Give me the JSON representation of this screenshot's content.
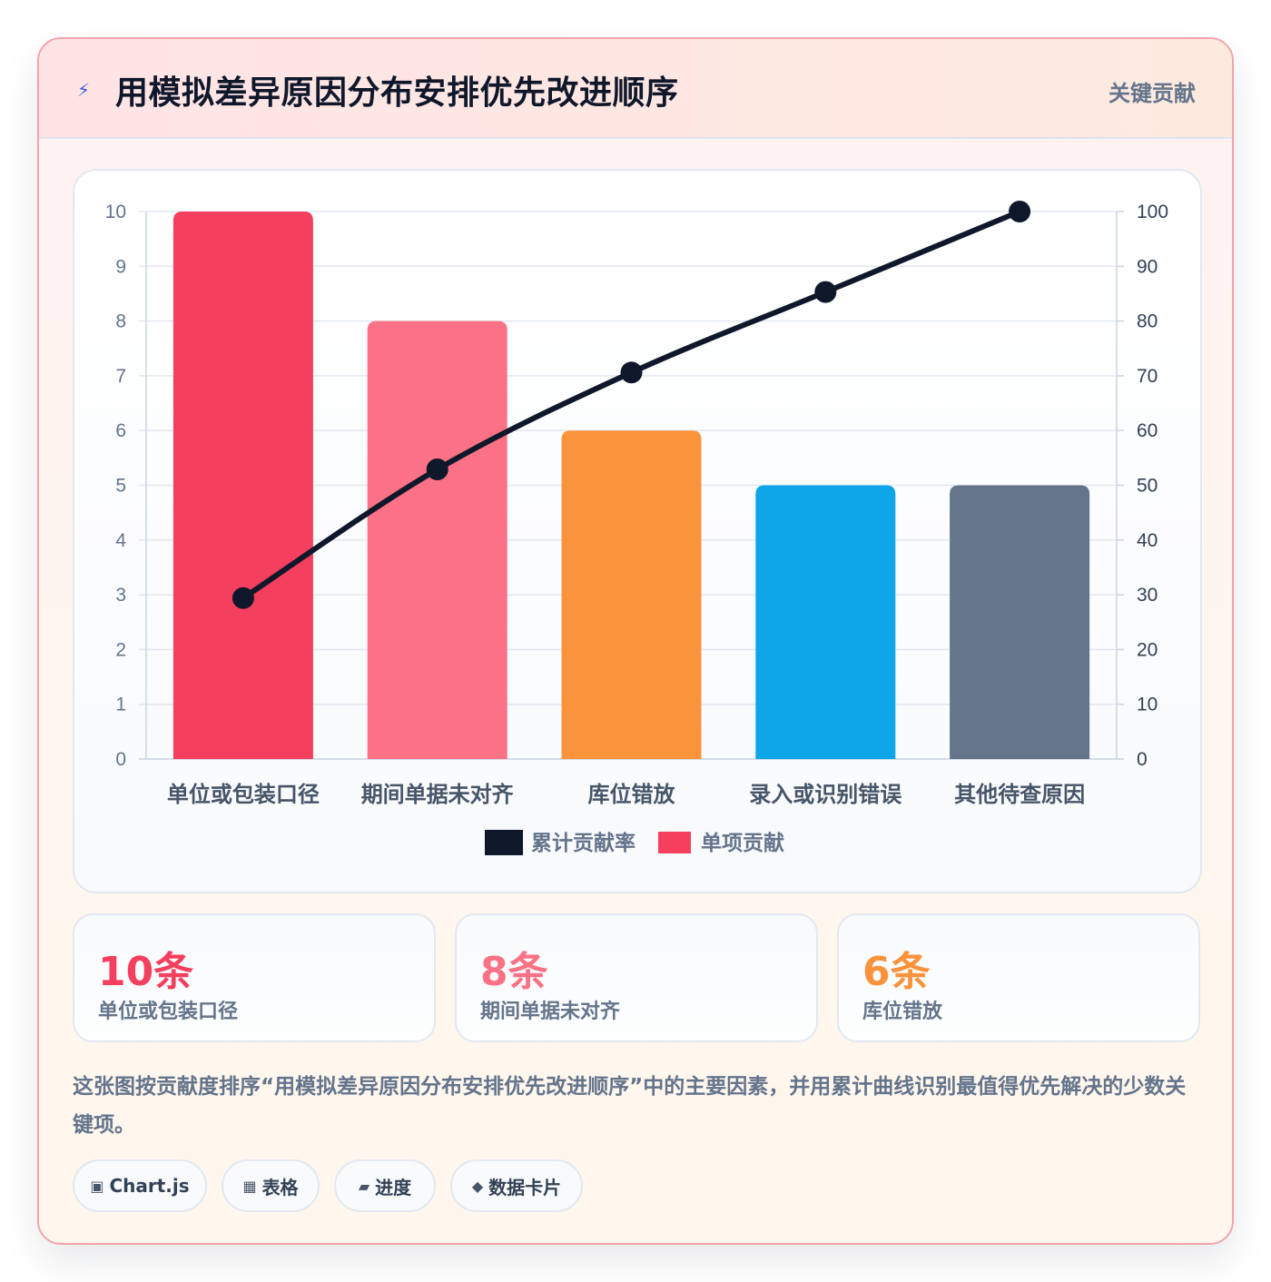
{
  "header": {
    "icon": "lightning-icon",
    "title": "用模拟差异原因分布安排优先改进顺序",
    "tag": "关键贡献"
  },
  "chart_data": {
    "type": "bar",
    "categories": [
      "单位或包装口径",
      "期间单据未对齐",
      "库位错放",
      "录入或识别错误",
      "其他待查原因"
    ],
    "series": [
      {
        "name": "单项贡献",
        "type": "bar",
        "axis": "left",
        "values": [
          10,
          8,
          6,
          5,
          5
        ],
        "colors": [
          "#f43f5e",
          "#fb7185",
          "#fb923c",
          "#0ea5e9",
          "#64748b"
        ]
      },
      {
        "name": "累计贡献率",
        "type": "line",
        "axis": "right",
        "values": [
          29.4,
          52.9,
          70.6,
          85.3,
          100
        ],
        "color": "#0f172a"
      }
    ],
    "y_left": {
      "min": 0,
      "max": 10,
      "step": 1
    },
    "y_right": {
      "min": 0,
      "max": 100,
      "step": 10
    },
    "legend": [
      "累计贡献率",
      "单项贡献"
    ],
    "legend_position": "bottom",
    "grid": true
  },
  "stats": [
    {
      "value": "10条",
      "label": "单位或包装口径",
      "color": "#f43f5e"
    },
    {
      "value": "8条",
      "label": "期间单据未对齐",
      "color": "#fb7185"
    },
    {
      "value": "6条",
      "label": "库位错放",
      "color": "#fb923c"
    }
  ],
  "description": "这张图按贡献度排序“用模拟差异原因分布安排优先改进顺序”中的主要因素，并用累计曲线识别最值得优先解决的少数关键项。",
  "pills": [
    {
      "icon": "▣",
      "label": "Chart.js"
    },
    {
      "icon": "▦",
      "label": "表格"
    },
    {
      "icon": "▰",
      "label": "进度"
    },
    {
      "icon": "◆",
      "label": "数据卡片"
    }
  ]
}
